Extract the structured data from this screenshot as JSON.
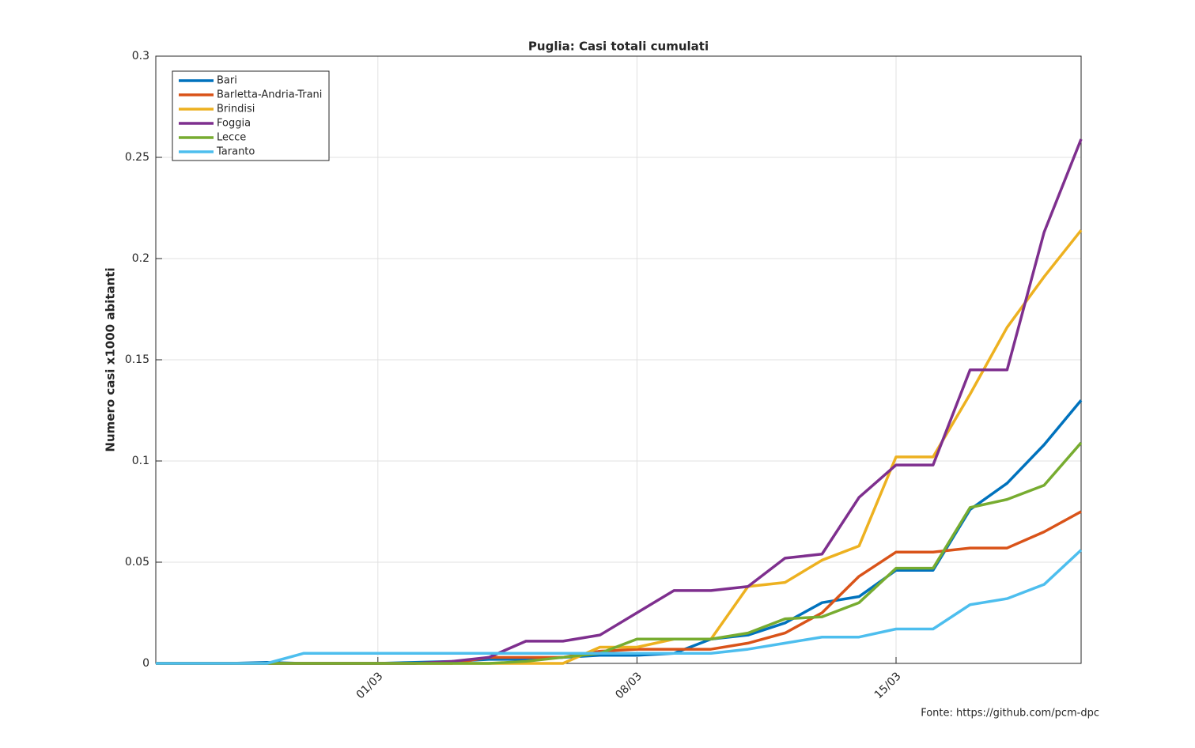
{
  "chart_data": {
    "type": "line",
    "title": "Puglia: Casi totali cumulati",
    "y_label": "Numero casi x1000 abitanti",
    "annotation": "Fonte: https://github.com/pcm-dpc",
    "categories": [
      null,
      null,
      null,
      null,
      null,
      null,
      "01/03",
      null,
      null,
      null,
      null,
      null,
      null,
      "08/03",
      null,
      null,
      null,
      null,
      null,
      null,
      "15/03",
      null,
      null,
      null,
      null,
      null
    ],
    "series": [
      {
        "name": "Bari",
        "color": "#0072bd",
        "values": [
          0,
          0,
          0,
          0.0005,
          0,
          0,
          0,
          0.0005,
          0.001,
          0.002,
          0.002,
          0.003,
          0.004,
          0.004,
          0.005,
          0.012,
          0.014,
          0.02,
          0.03,
          0.033,
          0.046,
          0.046,
          0.076,
          0.089,
          0.108,
          0.13
        ]
      },
      {
        "name": "Barletta-Andria-Trani",
        "color": "#d95319",
        "values": [
          0,
          0,
          0,
          0,
          0,
          0,
          0,
          0,
          0,
          0.003,
          0.003,
          0.003,
          0.006,
          0.007,
          0.007,
          0.007,
          0.01,
          0.015,
          0.025,
          0.043,
          0.055,
          0.055,
          0.057,
          0.057,
          0.065,
          0.075
        ]
      },
      {
        "name": "Brindisi",
        "color": "#edb120",
        "values": [
          0,
          0,
          0,
          0,
          0,
          0,
          0,
          0,
          0,
          0,
          0,
          0,
          0.008,
          0.008,
          0.012,
          0.012,
          0.038,
          0.04,
          0.051,
          0.058,
          0.102,
          0.102,
          0.133,
          0.166,
          0.191,
          0.214
        ]
      },
      {
        "name": "Foggia",
        "color": "#7e2f8e",
        "values": [
          0,
          0,
          0,
          0,
          0,
          0,
          0,
          0,
          0.001,
          0.003,
          0.011,
          0.011,
          0.014,
          0.025,
          0.036,
          0.036,
          0.038,
          0.052,
          0.054,
          0.082,
          0.098,
          0.098,
          0.145,
          0.145,
          0.213,
          0.259
        ]
      },
      {
        "name": "Lecce",
        "color": "#77ac30",
        "values": [
          0,
          0,
          0,
          0,
          0,
          0,
          0,
          0,
          0,
          0,
          0.001,
          0.003,
          0.005,
          0.012,
          0.012,
          0.012,
          0.015,
          0.022,
          0.023,
          0.03,
          0.047,
          0.047,
          0.077,
          0.081,
          0.088,
          0.109
        ]
      },
      {
        "name": "Taranto",
        "color": "#4dbeee",
        "values": [
          0,
          0,
          0,
          0,
          0.005,
          0.005,
          0.005,
          0.005,
          0.005,
          0.005,
          0.005,
          0.005,
          0.005,
          0.005,
          0.005,
          0.005,
          0.007,
          0.01,
          0.013,
          0.013,
          0.017,
          0.017,
          0.029,
          0.032,
          0.039,
          0.056
        ]
      }
    ],
    "ylim": [
      0,
      0.3
    ],
    "yticks": [
      0,
      0.05,
      0.1,
      0.15,
      0.2,
      0.25,
      0.3
    ],
    "grid": true,
    "legend": "upper-left"
  }
}
